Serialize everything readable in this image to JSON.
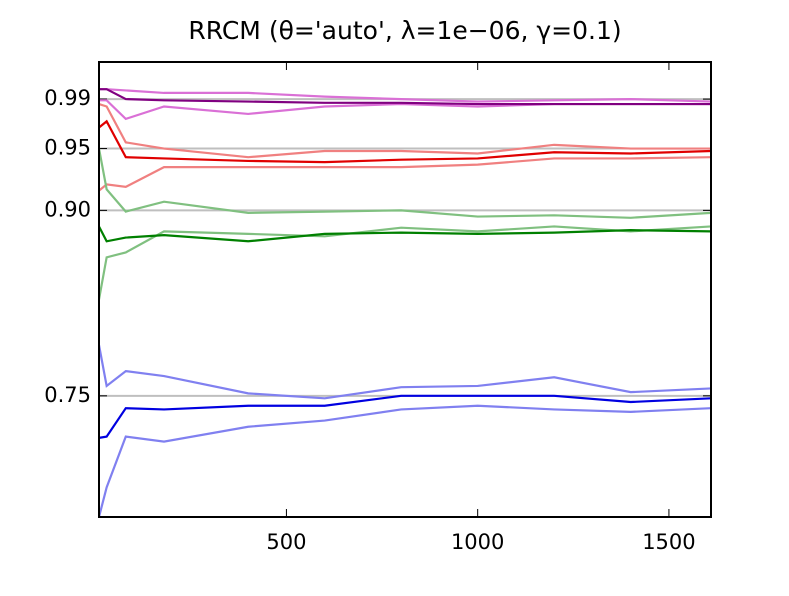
{
  "chart_data": {
    "type": "line",
    "title": "RRCM (θ='auto', λ=1e−06, γ=0.1)",
    "x": [
      10,
      30,
      80,
      180,
      400,
      600,
      800,
      1000,
      1200,
      1400,
      1610
    ],
    "series": [
      {
        "color": "#da70d6",
        "values": [
          0.998,
          0.998,
          0.997,
          0.995,
          0.995,
          0.992,
          0.99,
          0.988,
          0.989,
          0.99,
          0.988
        ]
      },
      {
        "color": "#da70d6",
        "values": [
          0.989,
          0.989,
          0.974,
          0.984,
          0.978,
          0.984,
          0.986,
          0.984,
          0.986,
          0.986,
          0.986
        ]
      },
      {
        "color": "#800080",
        "values": [
          0.998,
          0.998,
          0.99,
          0.989,
          0.988,
          0.987,
          0.987,
          0.986,
          0.986,
          0.986,
          0.986
        ]
      },
      {
        "color": "#f08080",
        "values": [
          0.986,
          0.984,
          0.955,
          0.95,
          0.943,
          0.948,
          0.948,
          0.946,
          0.953,
          0.95,
          0.95
        ]
      },
      {
        "color": "#f08080",
        "values": [
          0.916,
          0.921,
          0.919,
          0.935,
          0.935,
          0.935,
          0.935,
          0.937,
          0.942,
          0.942,
          0.943
        ]
      },
      {
        "color": "#e00000",
        "values": [
          0.967,
          0.972,
          0.943,
          0.942,
          0.94,
          0.939,
          0.941,
          0.942,
          0.947,
          0.946,
          0.948
        ]
      },
      {
        "color": "#80c080",
        "values": [
          0.95,
          0.917,
          0.899,
          0.907,
          0.898,
          0.899,
          0.9,
          0.895,
          0.896,
          0.894,
          0.898
        ]
      },
      {
        "color": "#80c080",
        "values": [
          0.828,
          0.862,
          0.866,
          0.883,
          0.881,
          0.879,
          0.886,
          0.883,
          0.887,
          0.883,
          0.887
        ]
      },
      {
        "color": "#008000",
        "values": [
          0.887,
          0.875,
          0.878,
          0.88,
          0.875,
          0.881,
          0.882,
          0.881,
          0.882,
          0.884,
          0.883
        ]
      },
      {
        "color": "#8080f0",
        "values": [
          0.791,
          0.758,
          0.77,
          0.766,
          0.752,
          0.748,
          0.757,
          0.758,
          0.765,
          0.753,
          0.756
        ]
      },
      {
        "color": "#8080f0",
        "values": [
          0.652,
          0.676,
          0.717,
          0.713,
          0.725,
          0.73,
          0.739,
          0.742,
          0.739,
          0.737,
          0.74
        ]
      },
      {
        "color": "#0000e0",
        "values": [
          0.716,
          0.717,
          0.74,
          0.739,
          0.742,
          0.742,
          0.75,
          0.75,
          0.75,
          0.745,
          0.748
        ]
      }
    ],
    "xlim": [
      10,
      1610
    ],
    "xticks": [
      500,
      1000,
      1500
    ],
    "ylim": [
      0.652,
      1.02
    ],
    "yticks": [
      0.75,
      {
        "value": 0.9,
        "label": "0.90"
      },
      0.95,
      0.99
    ],
    "grid": true,
    "grid_color": "#bfbfbf"
  }
}
